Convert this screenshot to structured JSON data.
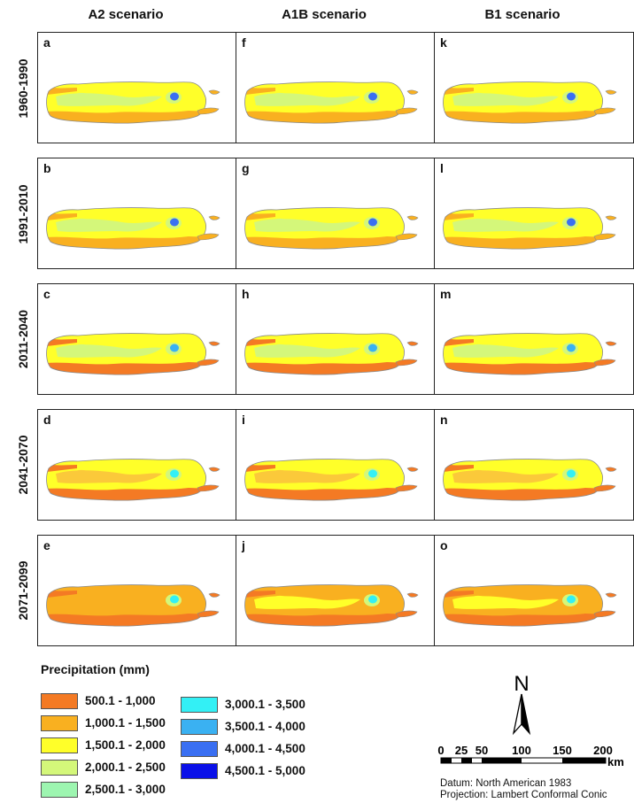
{
  "columns": [
    "A2 scenario",
    "A1B scenario",
    "B1 scenario"
  ],
  "rows": [
    "1960-1990",
    "1991-2010",
    "2011-2040",
    "2041-2070",
    "2071-2099"
  ],
  "panels": [
    {
      "letter": "a",
      "base": "yellow",
      "west": "lightgreen",
      "south": "orange",
      "wet": "blue"
    },
    {
      "letter": "f",
      "base": "yellow",
      "west": "lightgreen",
      "south": "orange",
      "wet": "blue"
    },
    {
      "letter": "k",
      "base": "yellow",
      "west": "lightgreen",
      "south": "orange",
      "wet": "blue"
    },
    {
      "letter": "b",
      "base": "yellow",
      "west": "lightgreen",
      "south": "orange",
      "wet": "blue"
    },
    {
      "letter": "g",
      "base": "yellow",
      "west": "lightgreen",
      "south": "orange",
      "wet": "blue"
    },
    {
      "letter": "l",
      "base": "yellow",
      "west": "lightgreen",
      "south": "orange",
      "wet": "blue"
    },
    {
      "letter": "c",
      "base": "yellow",
      "west": "lightgreen",
      "south": "darkorange",
      "wet": "cyanblue"
    },
    {
      "letter": "h",
      "base": "yellow",
      "west": "lightgreen",
      "south": "darkorange",
      "wet": "cyanblue"
    },
    {
      "letter": "m",
      "base": "yellow",
      "west": "lightgreen",
      "south": "darkorange",
      "wet": "cyanblue"
    },
    {
      "letter": "d",
      "base": "yellow",
      "west": "lightorange",
      "south": "darkorange",
      "wet": "cyan"
    },
    {
      "letter": "i",
      "base": "yellow",
      "west": "lightorange",
      "south": "darkorange",
      "wet": "cyan"
    },
    {
      "letter": "n",
      "base": "yellow",
      "west": "lightorange",
      "south": "darkorange",
      "wet": "cyan"
    },
    {
      "letter": "e",
      "base": "orange",
      "west": "orange",
      "south": "darkorange",
      "wet": "cyan"
    },
    {
      "letter": "j",
      "base": "orange",
      "west": "yellow",
      "south": "darkorange",
      "wet": "cyan"
    },
    {
      "letter": "o",
      "base": "orange",
      "west": "yellow",
      "south": "darkorange",
      "wet": "cyan"
    }
  ],
  "legend": {
    "title": "Precipitation (mm)",
    "classes": [
      {
        "label": "500.1 - 1,000",
        "color": "#f47a24"
      },
      {
        "label": "1,000.1 - 1,500",
        "color": "#f9b020"
      },
      {
        "label": "1,500.1 - 2,000",
        "color": "#ffff29"
      },
      {
        "label": "2,000.1 - 2,500",
        "color": "#d4f77a"
      },
      {
        "label": "2,500.1 - 3,000",
        "color": "#9df5b0"
      },
      {
        "label": "3,000.1 - 3,500",
        "color": "#33f0f5"
      },
      {
        "label": "3,500.1 - 4,000",
        "color": "#3ab1f2"
      },
      {
        "label": "4,000.1 - 4,500",
        "color": "#3a6ff2"
      },
      {
        "label": "4,500.1 - 5,000",
        "color": "#0a10e8"
      }
    ]
  },
  "palette": {
    "darkorange": "#f47a24",
    "orange": "#f9b020",
    "lightorange": "#fbc93a",
    "yellow": "#ffff29",
    "lightgreen": "#d4f77a",
    "cyan": "#33f0f5",
    "cyanblue": "#3ab1f2",
    "blue": "#3a6ff2"
  },
  "north_arrow": {
    "label": "N",
    "icon": "north-arrow-icon"
  },
  "scale_bar": {
    "ticks": [
      "0",
      "25",
      "50",
      "100",
      "150",
      "200"
    ],
    "unit": "km"
  },
  "datum": "Datum: North American 1983",
  "projection": "Projection: Lambert Conformal Conic"
}
